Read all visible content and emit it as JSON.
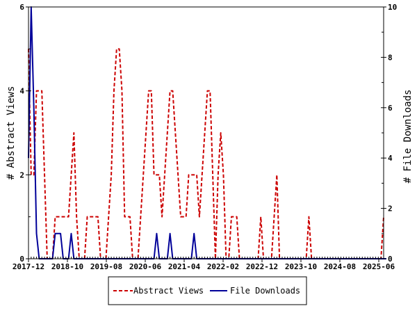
{
  "chart_data": {
    "type": "line",
    "x_tick_labels": [
      "2017-12",
      "2018-10",
      "2019-08",
      "2020-06",
      "2021-04",
      "2022-02",
      "2022-12",
      "2023-10",
      "2024-08",
      "2025-06"
    ],
    "left_axis": {
      "label": "# Abstract Views",
      "ylim": [
        0,
        6
      ],
      "ticks": [
        0,
        2,
        4,
        6
      ]
    },
    "right_axis": {
      "label": "# File Downloads",
      "ylim": [
        0,
        10
      ],
      "ticks": [
        0,
        2,
        4,
        6,
        8,
        10
      ]
    },
    "grid": false,
    "legend_position": "bottom-center",
    "series": [
      {
        "name": "Abstract Views",
        "axis": "left",
        "color": "#cc0000",
        "style": "dashed",
        "values": [
          5,
          2,
          2,
          4,
          4,
          4,
          2,
          0,
          0,
          0,
          1,
          1,
          1,
          1,
          1,
          1,
          2,
          3,
          1,
          0,
          0,
          0,
          1,
          1,
          1,
          1,
          1,
          0,
          0,
          0,
          1,
          2,
          4,
          5,
          5,
          4,
          1,
          1,
          1,
          0,
          0,
          0,
          1,
          2,
          3,
          4,
          4,
          2,
          2,
          2,
          1,
          2,
          3,
          4,
          4,
          3,
          2,
          1,
          1,
          1,
          2,
          2,
          2,
          2,
          1,
          2,
          3,
          4,
          4,
          2,
          0,
          2,
          3,
          2,
          0,
          0,
          1,
          1,
          1,
          0,
          0,
          0,
          0,
          0,
          0,
          0,
          0,
          1,
          0,
          0,
          0,
          0,
          1,
          2,
          0,
          0,
          0,
          0,
          0,
          0,
          0,
          0,
          0,
          0,
          0,
          1,
          0,
          0,
          0,
          0,
          0,
          0,
          0,
          0,
          0,
          0,
          0,
          0,
          0,
          0,
          0,
          0,
          0,
          0,
          0,
          0,
          0,
          0,
          0,
          0,
          0,
          0,
          0,
          1
        ]
      },
      {
        "name": "File Downloads",
        "axis": "right",
        "color": "#000099",
        "style": "solid",
        "values": [
          4,
          10,
          6,
          1,
          0,
          0,
          0,
          0,
          0,
          0,
          1,
          1,
          1,
          0,
          0,
          0,
          1,
          0,
          0,
          0,
          0,
          0,
          0,
          0,
          0,
          0,
          0,
          0,
          0,
          0,
          0,
          0,
          0,
          0,
          0,
          0,
          0,
          0,
          0,
          0,
          0,
          0,
          0,
          0,
          0,
          0,
          0,
          0,
          1,
          0,
          0,
          0,
          0,
          1,
          0,
          0,
          0,
          0,
          0,
          0,
          0,
          0,
          1,
          0,
          0,
          0,
          0,
          0,
          0,
          0,
          0,
          0,
          0,
          0,
          0,
          0,
          0,
          0,
          0,
          0,
          0,
          0,
          0,
          0,
          0,
          0,
          0,
          0,
          0,
          0,
          0,
          0,
          0,
          0,
          0,
          0,
          0,
          0,
          0,
          0,
          0,
          0,
          0,
          0,
          0,
          0,
          0,
          0,
          0,
          0,
          0,
          0,
          0,
          0,
          0,
          0,
          0,
          0,
          0,
          0,
          0,
          0,
          0,
          0,
          0,
          0,
          0,
          0,
          0,
          0,
          0,
          0,
          0,
          0,
          0
        ]
      }
    ]
  }
}
